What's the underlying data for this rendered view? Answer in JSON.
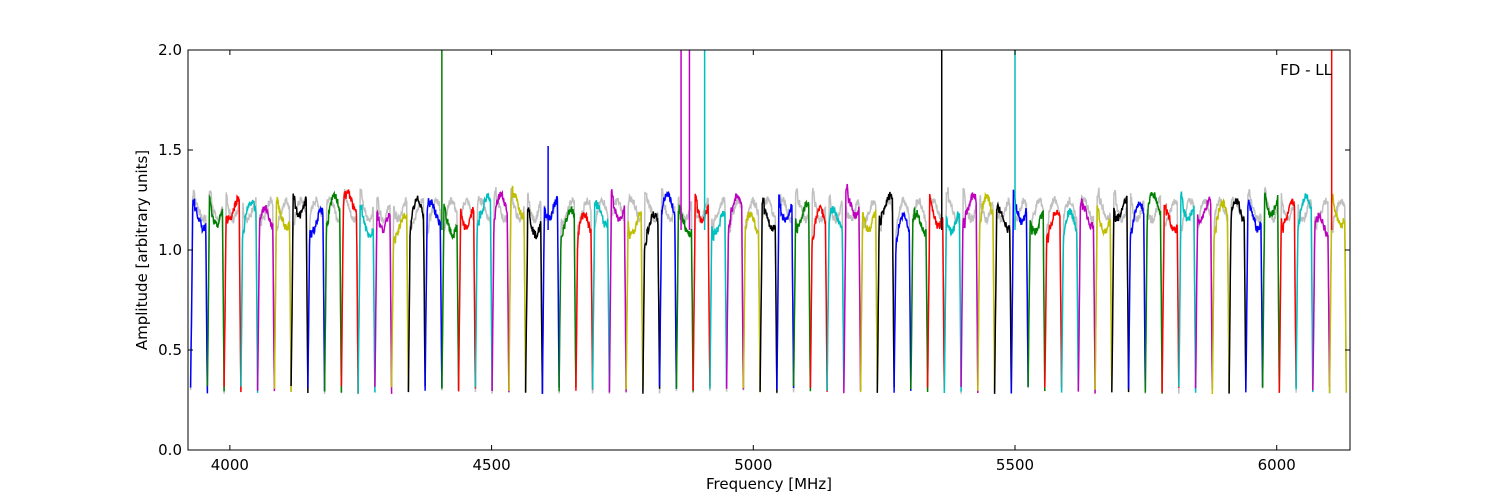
{
  "chart_data": {
    "type": "line",
    "title": "",
    "annotation": "FD - LL",
    "xlabel": "Frequency [MHz]",
    "ylabel": "Amplitude [arbitrary units]",
    "xlim": [
      3920,
      6140
    ],
    "ylim": [
      0.0,
      2.0
    ],
    "xticks": [
      4000,
      4500,
      5000,
      5500,
      6000
    ],
    "yticks": [
      0.0,
      0.5,
      1.0,
      1.5,
      2.0
    ],
    "xtick_labels": [
      "4000",
      "4500",
      "5000",
      "5500",
      "6000"
    ],
    "ytick_labels": [
      "0.0",
      "0.5",
      "1.0",
      "1.5",
      "2.0"
    ],
    "grid": false,
    "colors": [
      "#0000ff",
      "#008000",
      "#ff0000",
      "#00bfbf",
      "#bf00bf",
      "#bfbf00",
      "#000000"
    ],
    "background_color": "#c0c0c0",
    "channels": {
      "start": 3925,
      "width": 32,
      "count": 69,
      "level": 1.18,
      "edge_min": 0.3
    },
    "spikes": [
      {
        "x": 4405,
        "y": 2.0,
        "color": "#008000"
      },
      {
        "x": 4608,
        "y": 1.52,
        "color": "#0000ff"
      },
      {
        "x": 4862,
        "y": 2.0,
        "color": "#bf00bf"
      },
      {
        "x": 4878,
        "y": 2.0,
        "color": "#bf00bf"
      },
      {
        "x": 4907,
        "y": 2.0,
        "color": "#00bfbf"
      },
      {
        "x": 5360,
        "y": 2.0,
        "color": "#000000"
      },
      {
        "x": 5500,
        "y": 2.0,
        "color": "#00bfbf"
      },
      {
        "x": 6105,
        "y": 2.0,
        "color": "#ff0000"
      }
    ]
  }
}
